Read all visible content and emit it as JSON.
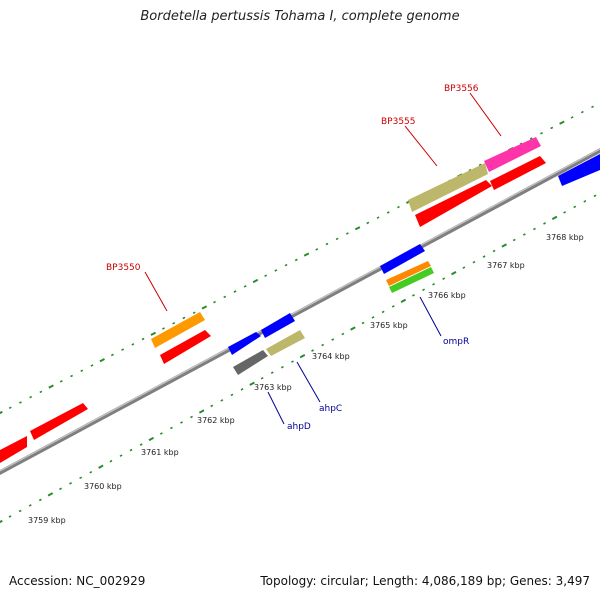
{
  "title": "Bordetella pertussis Tohama I, complete genome",
  "accession": "Accession: NC_002929",
  "summary": "Topology: circular; Length: 4,086,189 bp; Genes: 3,497",
  "colors": {
    "backbone": "#888888",
    "ticks": "#2a8a2a",
    "tick_label": "#222222",
    "label_red": "#cc0000",
    "label_blue": "#000099"
  },
  "axis_labels": [
    "3759 kbp",
    "3760 kbp",
    "3761 kbp",
    "3762 kbp",
    "3763 kbp",
    "3764 kbp",
    "3765 kbp",
    "3766 kbp",
    "3767 kbp",
    "3768 kbp"
  ],
  "gene_labels": [
    "BP3550",
    "BP3555",
    "BP3556",
    "ahpD",
    "ahpC",
    "ompR"
  ],
  "feature_colors": [
    "#ff0000",
    "#ff0000",
    "#ff0000",
    "#ff9900",
    "#0000ff",
    "#0000ff",
    "#666666",
    "#bdb76b",
    "#0000ff",
    "#ff8800",
    "#44cc22",
    "#bdb76b",
    "#ff0000",
    "#ff33aa",
    "#ff0000",
    "#0000ff"
  ]
}
